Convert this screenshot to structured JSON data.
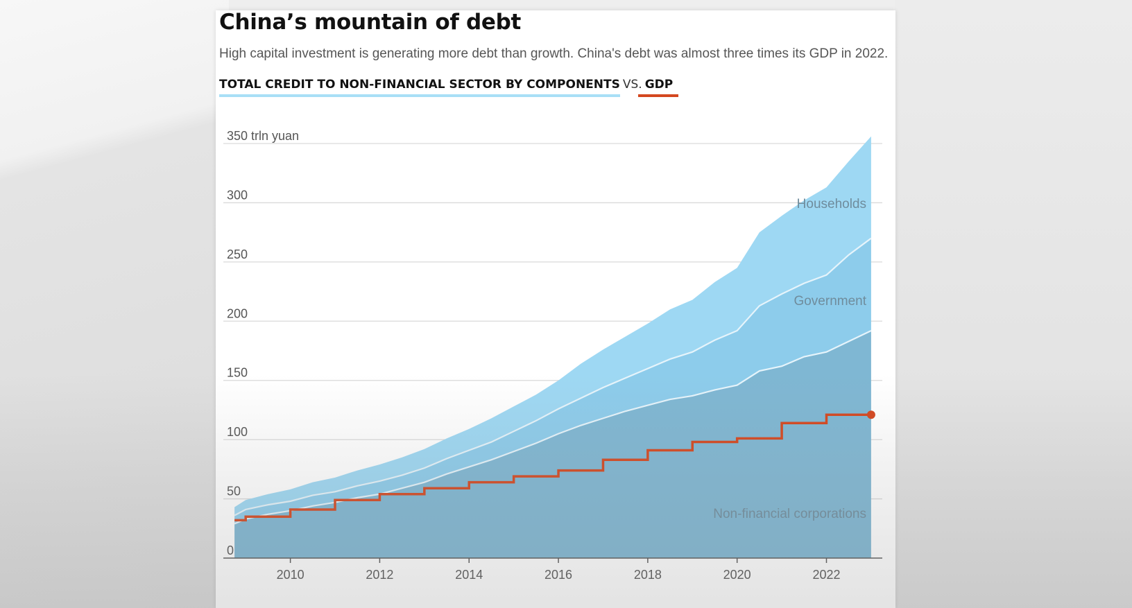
{
  "header": {
    "title": "China’s mountain of debt",
    "subtitle": "High capital investment is generating more debt than growth. China's debt was almost three times its GDP in 2022.",
    "legend_credit": "TOTAL CREDIT TO NON-FINANCIAL SECTOR BY COMPONENTS",
    "legend_vs": "VS.",
    "legend_gdp": "GDP"
  },
  "colors": {
    "households": "#9ed8f3",
    "government": "#8dcceb",
    "corporations": "#7fb7d3",
    "series_boundary": "#e6f4fb",
    "gdp": "#d4471f",
    "gridline": "#d9d9d9",
    "axis": "#555555",
    "area_label": "#6f8c9c",
    "tick_label": "#555555"
  },
  "chart_data": {
    "type": "area",
    "stacked": true,
    "y_unit_label": "350 trln yuan",
    "ylim": [
      0,
      350
    ],
    "y_ticks": [
      {
        "value": 0,
        "label": "0"
      },
      {
        "value": 50,
        "label": "50"
      },
      {
        "value": 100,
        "label": "100"
      },
      {
        "value": 150,
        "label": "150"
      },
      {
        "value": 200,
        "label": "200"
      },
      {
        "value": 250,
        "label": "250"
      },
      {
        "value": 300,
        "label": "300"
      },
      {
        "value": 350,
        "label": "350 trln yuan"
      }
    ],
    "xlim": [
      2008.5,
      2023.25
    ],
    "x_ticks": [
      {
        "value": 2010,
        "label": "2010"
      },
      {
        "value": 2012,
        "label": "2012"
      },
      {
        "value": 2014,
        "label": "2014"
      },
      {
        "value": 2016,
        "label": "2016"
      },
      {
        "value": 2018,
        "label": "2018"
      },
      {
        "value": 2020,
        "label": "2020"
      },
      {
        "value": 2022,
        "label": "2022"
      }
    ],
    "grid": true,
    "x": [
      2008.75,
      2009,
      2009.5,
      2010,
      2010.5,
      2011,
      2011.5,
      2012,
      2012.5,
      2013,
      2013.5,
      2014,
      2014.5,
      2015,
      2015.5,
      2016,
      2016.5,
      2017,
      2017.5,
      2018,
      2018.5,
      2019,
      2019.5,
      2020,
      2020.5,
      2021,
      2021.5,
      2022,
      2022.5,
      2023
    ],
    "series": [
      {
        "name": "Non-financial corporations",
        "values": [
          29,
          33,
          37,
          40,
          44,
          47,
          51,
          54,
          59,
          64,
          71,
          77,
          83,
          90,
          97,
          105,
          112,
          118,
          124,
          129,
          134,
          137,
          142,
          146,
          158,
          162,
          170,
          174,
          183,
          192
        ]
      },
      {
        "name": "Government",
        "values": [
          7,
          8,
          8,
          8,
          9,
          9,
          10,
          11,
          11,
          12,
          13,
          14,
          15,
          17,
          19,
          21,
          23,
          26,
          28,
          31,
          34,
          37,
          42,
          46,
          55,
          61,
          62,
          65,
          73,
          78
        ]
      },
      {
        "name": "Households",
        "values": [
          7,
          8,
          9,
          10,
          11,
          12,
          13,
          14,
          15,
          16,
          17,
          18,
          20,
          21,
          22,
          24,
          29,
          32,
          35,
          38,
          42,
          44,
          49,
          53,
          62,
          66,
          70,
          74,
          79,
          86
        ]
      }
    ],
    "gdp": {
      "name": "GDP",
      "x": [
        2008.75,
        2009,
        2009,
        2010,
        2010,
        2011,
        2011,
        2012,
        2012,
        2013,
        2013,
        2014,
        2014,
        2015,
        2015,
        2016,
        2016,
        2017,
        2017,
        2018,
        2018,
        2019,
        2019,
        2020,
        2020,
        2021,
        2021,
        2022,
        2022,
        2023
      ],
      "values": [
        32,
        32,
        35,
        35,
        41,
        41,
        49,
        49,
        54,
        54,
        59,
        59,
        64,
        64,
        69,
        69,
        74,
        74,
        83,
        83,
        91,
        91,
        98,
        98,
        101,
        101,
        114,
        114,
        121,
        121
      ]
    },
    "area_labels": [
      "Households",
      "Government",
      "Non-financial corporations"
    ]
  }
}
